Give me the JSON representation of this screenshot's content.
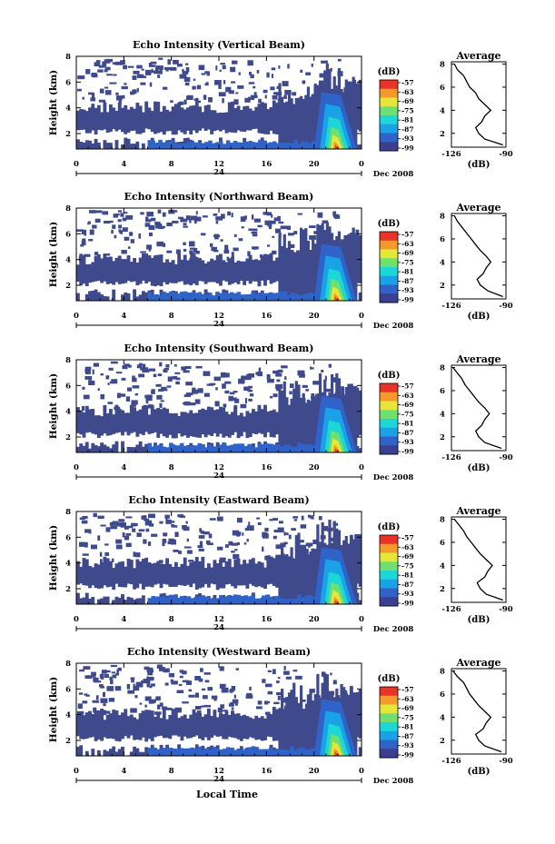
{
  "chart_data": [
    {
      "type": "heatmap",
      "title": "Echo Intensity (Vertical Beam)",
      "ylabel": "Height (km)",
      "yticks": [
        "2",
        "4",
        "6",
        "8"
      ],
      "xticks": [
        "0",
        "4",
        "8",
        "12",
        "16",
        "20",
        "0"
      ],
      "xmarker": "24",
      "date_label": "Dec 2008",
      "colorbar_unit": "(dB)",
      "colorbar_ticks": [
        "-57",
        "-63",
        "-69",
        "-75",
        "-81",
        "-87",
        "-93",
        "-99"
      ],
      "xlim": [
        0,
        24
      ],
      "ylim": [
        0.8,
        8
      ],
      "profile": {
        "title": "Average",
        "xticks": [
          "-126",
          "-90"
        ],
        "xlabel": "(dB)",
        "yticks": [
          "2",
          "4",
          "6",
          "8"
        ],
        "height_km": [
          1.0,
          1.5,
          2.0,
          2.5,
          3.0,
          3.5,
          4.0,
          4.5,
          5.0,
          5.5,
          6.0,
          6.5,
          7.0,
          7.5,
          8.0
        ],
        "echo_db": [
          -92,
          -104,
          -108,
          -110,
          -106,
          -104,
          -100,
          -104,
          -108,
          -110,
          -114,
          -116,
          -118,
          -122,
          -124
        ]
      }
    },
    {
      "type": "heatmap",
      "title": "Echo Intensity (Northward Beam)",
      "ylabel": "Height (km)",
      "yticks": [
        "2",
        "4",
        "6",
        "8"
      ],
      "xticks": [
        "0",
        "4",
        "8",
        "12",
        "16",
        "20",
        "0"
      ],
      "xmarker": "24",
      "date_label": "Dec 2008",
      "colorbar_unit": "(dB)",
      "colorbar_ticks": [
        "-57",
        "-63",
        "-69",
        "-75",
        "-81",
        "-87",
        "-93",
        "-99"
      ],
      "xlim": [
        0,
        24
      ],
      "ylim": [
        0.8,
        8
      ],
      "profile": {
        "title": "Average",
        "xticks": [
          "-126",
          "-90"
        ],
        "xlabel": "(dB)",
        "yticks": [
          "2",
          "4",
          "6",
          "8"
        ],
        "height_km": [
          1.0,
          1.5,
          2.0,
          2.5,
          3.0,
          3.5,
          4.0,
          4.5,
          5.0,
          5.5,
          6.0,
          6.5,
          7.0,
          7.5,
          8.0
        ],
        "echo_db": [
          -92,
          -102,
          -107,
          -109,
          -105,
          -103,
          -100,
          -103,
          -107,
          -110,
          -113,
          -116,
          -119,
          -122,
          -124
        ]
      }
    },
    {
      "type": "heatmap",
      "title": "Echo Intensity (Southward Beam)",
      "ylabel": "Height (km)",
      "yticks": [
        "2",
        "4",
        "6",
        "8"
      ],
      "xticks": [
        "0",
        "4",
        "8",
        "12",
        "16",
        "20",
        "0"
      ],
      "xmarker": "24",
      "date_label": "Dec 2008",
      "colorbar_unit": "(dB)",
      "colorbar_ticks": [
        "-57",
        "-63",
        "-69",
        "-75",
        "-81",
        "-87",
        "-93",
        "-99"
      ],
      "xlim": [
        0,
        24
      ],
      "ylim": [
        0.8,
        8
      ],
      "profile": {
        "title": "Average",
        "xticks": [
          "-126",
          "-90"
        ],
        "xlabel": "(dB)",
        "yticks": [
          "2",
          "4",
          "6",
          "8"
        ],
        "height_km": [
          1.0,
          1.5,
          2.0,
          2.5,
          3.0,
          3.5,
          4.0,
          4.5,
          5.0,
          5.5,
          6.0,
          6.5,
          7.0,
          7.5,
          8.0
        ],
        "echo_db": [
          -93,
          -104,
          -108,
          -110,
          -106,
          -104,
          -101,
          -104,
          -108,
          -111,
          -114,
          -117,
          -119,
          -122,
          -125
        ]
      }
    },
    {
      "type": "heatmap",
      "title": "Echo Intensity (Eastward Beam)",
      "ylabel": "Height (km)",
      "yticks": [
        "2",
        "4",
        "6",
        "8"
      ],
      "xticks": [
        "0",
        "4",
        "8",
        "12",
        "16",
        "20",
        "0"
      ],
      "xmarker": "24",
      "date_label": "Dec 2008",
      "colorbar_unit": "(dB)",
      "colorbar_ticks": [
        "-57",
        "-63",
        "-69",
        "-75",
        "-81",
        "-87",
        "-93",
        "-99"
      ],
      "xlim": [
        0,
        24
      ],
      "ylim": [
        0.8,
        8
      ],
      "profile": {
        "title": "Average",
        "xticks": [
          "-126",
          "-90"
        ],
        "xlabel": "(dB)",
        "yticks": [
          "2",
          "4",
          "6",
          "8"
        ],
        "height_km": [
          1.0,
          1.5,
          2.0,
          2.5,
          3.0,
          3.5,
          4.0,
          4.5,
          5.0,
          5.5,
          6.0,
          6.5,
          7.0,
          7.5,
          8.0
        ],
        "echo_db": [
          -92,
          -103,
          -107,
          -109,
          -104,
          -102,
          -99,
          -103,
          -107,
          -110,
          -113,
          -116,
          -118,
          -121,
          -124
        ]
      }
    },
    {
      "type": "heatmap",
      "title": "Echo Intensity (Westward Beam)",
      "ylabel": "Height (km)",
      "yticks": [
        "2",
        "4",
        "6",
        "8"
      ],
      "xticks": [
        "0",
        "4",
        "8",
        "12",
        "16",
        "20",
        "0"
      ],
      "xmarker": "24",
      "date_label": "Dec 2008",
      "colorbar_unit": "(dB)",
      "colorbar_ticks": [
        "-57",
        "-63",
        "-69",
        "-75",
        "-81",
        "-87",
        "-93",
        "-99"
      ],
      "xlim": [
        0,
        24
      ],
      "ylim": [
        0.8,
        8
      ],
      "profile": {
        "title": "Average",
        "xticks": [
          "-126",
          "-90"
        ],
        "xlabel": "(dB)",
        "yticks": [
          "2",
          "4",
          "6",
          "8"
        ],
        "height_km": [
          1.0,
          1.5,
          2.0,
          2.5,
          3.0,
          3.5,
          4.0,
          4.5,
          5.0,
          5.5,
          6.0,
          6.5,
          7.0,
          7.5,
          8.0
        ],
        "echo_db": [
          -93,
          -104,
          -108,
          -110,
          -105,
          -103,
          -100,
          -104,
          -108,
          -111,
          -114,
          -116,
          -118,
          -122,
          -125
        ]
      }
    }
  ],
  "xlabel": "Local Time",
  "colors": {
    "background_echo": "#3f4a8c",
    "colormap": [
      "#3a3f8f",
      "#2f63c9",
      "#1aa2e6",
      "#1dd6d6",
      "#6fe06f",
      "#e6e63a",
      "#f59a2a",
      "#e8322a"
    ]
  }
}
